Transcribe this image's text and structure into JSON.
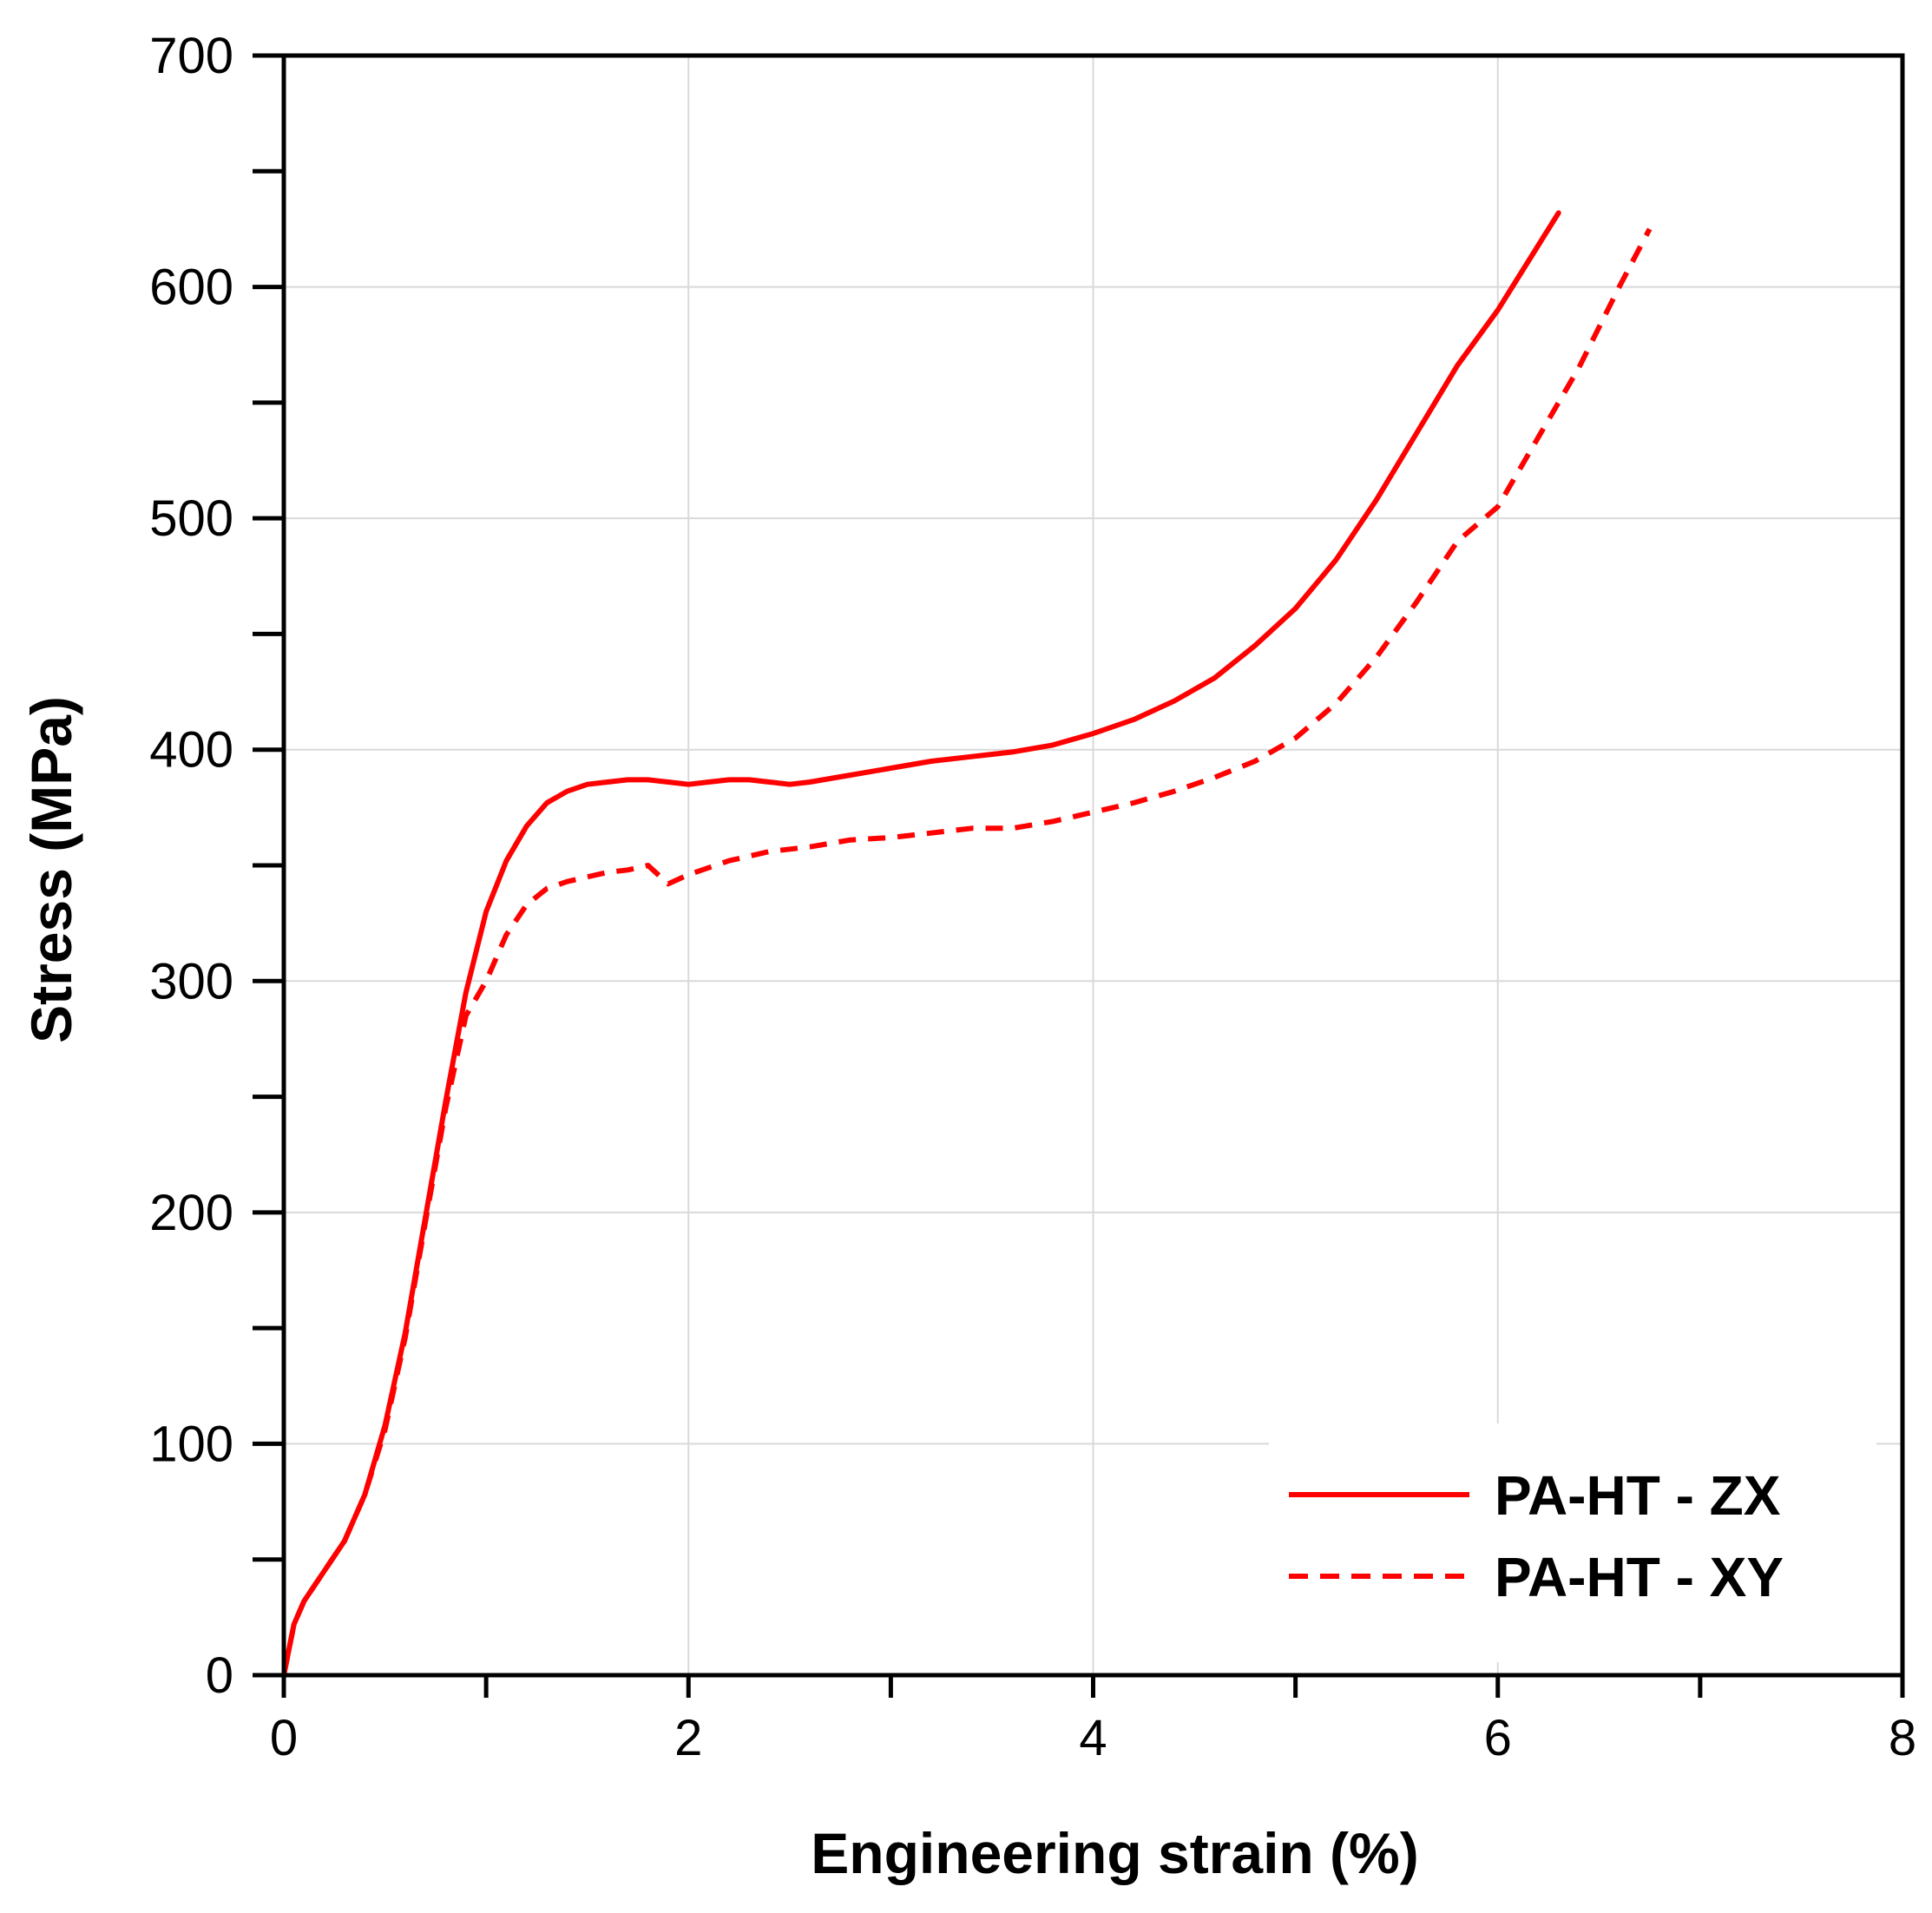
{
  "chart_data": {
    "type": "line",
    "title": "",
    "xlabel": "Engineering strain (%)",
    "ylabel": "Stress (MPa)",
    "xlim": [
      0,
      8
    ],
    "ylim": [
      0,
      700
    ],
    "x_ticks": [
      0,
      2,
      4,
      6,
      8
    ],
    "x_tick_labels": [
      "0",
      "2",
      "4",
      "6",
      "8"
    ],
    "x_minor_ticks": [
      1,
      3,
      5,
      7
    ],
    "y_ticks": [
      0,
      100,
      200,
      300,
      400,
      500,
      600,
      700
    ],
    "y_tick_labels": [
      "0",
      "100",
      "200",
      "300",
      "400",
      "500",
      "600",
      "700"
    ],
    "y_minor_ticks": [
      50,
      150,
      250,
      350,
      450,
      550,
      650
    ],
    "grid": true,
    "legend_position": "bottom-right",
    "series": [
      {
        "name": "PA-HT - ZX",
        "style": "solid",
        "color": "#ff0000",
        "x": [
          0,
          0.05,
          0.1,
          0.2,
          0.3,
          0.4,
          0.5,
          0.6,
          0.7,
          0.8,
          0.9,
          1.0,
          1.1,
          1.2,
          1.3,
          1.4,
          1.5,
          1.6,
          1.7,
          1.8,
          1.9,
          2.0,
          2.1,
          2.2,
          2.3,
          2.4,
          2.5,
          2.6,
          2.8,
          3.0,
          3.2,
          3.4,
          3.6,
          3.8,
          4.0,
          4.2,
          4.4,
          4.6,
          4.8,
          5.0,
          5.2,
          5.4,
          5.6,
          5.8,
          6.0,
          6.1,
          6.2,
          6.3
        ],
        "y": [
          0,
          22,
          32,
          45,
          58,
          78,
          108,
          148,
          198,
          248,
          295,
          330,
          352,
          367,
          377,
          382,
          385,
          386,
          387,
          387,
          386,
          385,
          386,
          387,
          387,
          386,
          385,
          386,
          389,
          392,
          395,
          397,
          399,
          402,
          407,
          413,
          421,
          431,
          445,
          461,
          482,
          508,
          537,
          566,
          590,
          604,
          618,
          632
        ]
      },
      {
        "name": "PA-HT - XY",
        "style": "dashed",
        "color": "#ff0000",
        "x": [
          0,
          0.05,
          0.1,
          0.2,
          0.3,
          0.4,
          0.5,
          0.6,
          0.7,
          0.8,
          0.9,
          1.0,
          1.1,
          1.2,
          1.3,
          1.4,
          1.5,
          1.6,
          1.7,
          1.8,
          1.9,
          2.0,
          2.2,
          2.4,
          2.6,
          2.8,
          3.0,
          3.2,
          3.4,
          3.6,
          3.8,
          4.0,
          4.2,
          4.4,
          4.6,
          4.8,
          5.0,
          5.2,
          5.4,
          5.6,
          5.8,
          6.0,
          6.2,
          6.4,
          6.6,
          6.75
        ],
        "y": [
          0,
          22,
          32,
          45,
          58,
          78,
          106,
          146,
          196,
          245,
          285,
          300,
          320,
          333,
          340,
          343,
          345,
          347,
          348,
          350,
          342,
          346,
          352,
          356,
          358,
          361,
          362,
          364,
          366,
          366,
          369,
          373,
          377,
          382,
          388,
          395,
          405,
          420,
          440,
          464,
          490,
          505,
          535,
          565,
          600,
          625
        ]
      }
    ]
  }
}
